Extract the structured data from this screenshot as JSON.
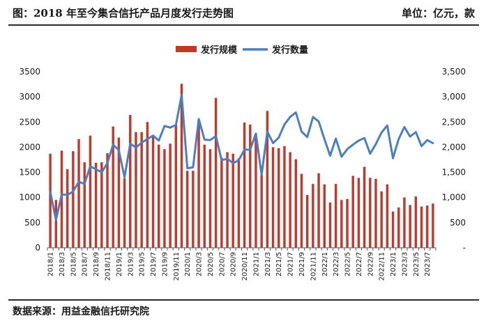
{
  "header": {
    "title": "图：2018 年至今集合信托产品月度发行走势图",
    "unit": "单位：亿元，款"
  },
  "footer": {
    "source": "数据来源：用益金融信托研究院"
  },
  "colors": {
    "bar": "#c0392b",
    "line": "#4a7fc1",
    "rule": "#2b2b2b"
  },
  "chart_data": {
    "type": "bar+line",
    "legend": [
      "发行规模",
      "发行数量"
    ],
    "legend_position": "top-center",
    "grid": false,
    "x": [
      "2018/1",
      "2018/2",
      "2018/3",
      "2018/4",
      "2018/5",
      "2018/6",
      "2018/7",
      "2018/8",
      "2018/9",
      "2018/10",
      "2018/11",
      "2018/12",
      "2019/1",
      "2019/2",
      "2019/3",
      "2019/4",
      "2019/5",
      "2019/6",
      "2019/7",
      "2019/8",
      "2019/9",
      "2019/10",
      "2019/11",
      "2019/12",
      "2020/1",
      "2020/2",
      "2020/3",
      "2020/4",
      "2020/5",
      "2020/6",
      "2020/7",
      "2020/8",
      "2020/9",
      "2020/10",
      "2020/11",
      "2020/12",
      "2021/1",
      "2021/2",
      "2021/3",
      "2021/4",
      "2021/5",
      "2021/6",
      "2021/7",
      "2021/8",
      "2021/9",
      "2021/10",
      "2021/11",
      "2021/12",
      "2022/1",
      "2022/2",
      "2022/3",
      "2022/4",
      "2022/5",
      "2022/6",
      "2022/7",
      "2022/8",
      "2022/9",
      "2022/10",
      "2022/11",
      "2022/12",
      "2023/1",
      "2023/2",
      "2023/3",
      "2023/4",
      "2023/5",
      "2023/6",
      "2023/7",
      "2023/8"
    ],
    "x_tick_labels": [
      "2018/1",
      "2018/3",
      "2018/5",
      "2018/7",
      "2018/9",
      "2018/11",
      "2019/1",
      "2019/3",
      "2019/5",
      "2019/7",
      "2019/9",
      "2019/11",
      "2020/1",
      "2020/3",
      "2020/5",
      "2020/7",
      "2020/9",
      "2020/11",
      "2021/1",
      "2021/3",
      "2021/5",
      "2021/7",
      "2021/9",
      "2021/11",
      "2022/1",
      "2022/3",
      "2022/5",
      "2022/7",
      "2022/9",
      "2022/11",
      "2023/1",
      "2023/3",
      "2023/5",
      "2023/7"
    ],
    "y_left": {
      "ylim": [
        0,
        3500
      ],
      "ticks": [
        "0",
        "500",
        "1000",
        "1500",
        "2000",
        "2500",
        "3000",
        "3500"
      ]
    },
    "y_right": {
      "ylim": [
        0,
        3500
      ],
      "ticks": [
        "-",
        "500",
        "1,000",
        "1,500",
        "2,000",
        "2,500",
        "3,000",
        "3,500"
      ]
    },
    "series": [
      {
        "name": "发行规模",
        "type": "bar",
        "axis": "left",
        "values": [
          1870,
          950,
          1930,
          1560,
          1920,
          2160,
          1700,
          2230,
          1690,
          1700,
          1880,
          2410,
          2190,
          1380,
          2640,
          2300,
          2300,
          2500,
          2220,
          2050,
          1960,
          2070,
          2450,
          3260,
          1530,
          1530,
          2530,
          2050,
          1960,
          2980,
          1790,
          1900,
          1870,
          1780,
          2490,
          2450,
          2230,
          1450,
          2720,
          2000,
          1980,
          2020,
          1900,
          1760,
          1470,
          1050,
          1270,
          1480,
          1260,
          900,
          1270,
          950,
          970,
          1430,
          1390,
          1610,
          1390,
          1370,
          1120,
          1260,
          720,
          800,
          1000,
          850,
          1020,
          820,
          840,
          880
        ]
      },
      {
        "name": "发行数量",
        "type": "line",
        "axis": "right",
        "values": [
          1110,
          550,
          1060,
          1050,
          1120,
          1310,
          1270,
          1620,
          1560,
          1500,
          1680,
          2050,
          1940,
          1400,
          2070,
          1990,
          2090,
          2160,
          2230,
          2130,
          2420,
          2390,
          2440,
          3040,
          1580,
          1600,
          2560,
          2150,
          2140,
          2220,
          1740,
          1770,
          1680,
          1740,
          1950,
          1950,
          2270,
          1450,
          2310,
          2080,
          2190,
          2450,
          2600,
          2690,
          2310,
          2200,
          2600,
          2510,
          2160,
          1830,
          2170,
          1810,
          1960,
          2050,
          2130,
          2180,
          1870,
          2060,
          2290,
          2430,
          1780,
          2160,
          2400,
          2210,
          2300,
          2020,
          2140,
          2080
        ]
      }
    ]
  }
}
